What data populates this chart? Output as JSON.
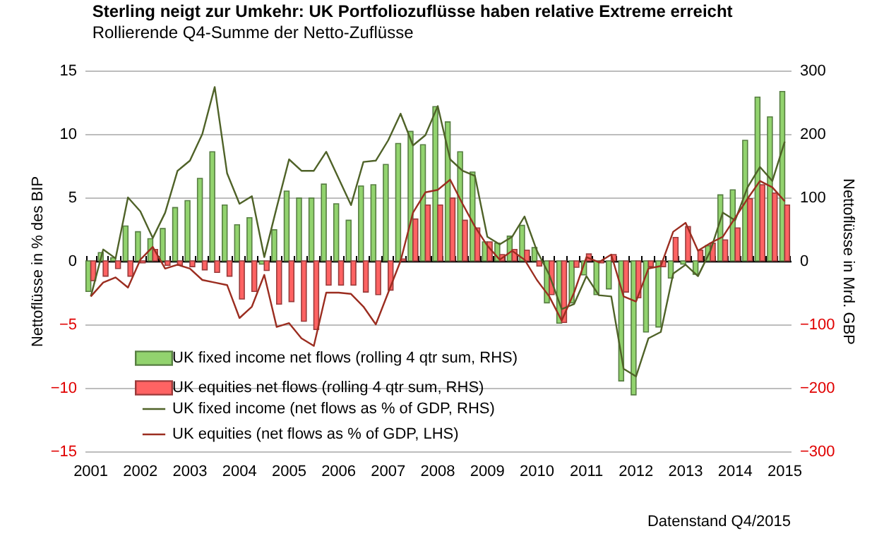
{
  "chart_data": {
    "type": "bar",
    "title": "Sterling neigt zur Umkehr: UK Portfoliozuflüsse haben relative Extreme erreicht",
    "subtitle": "Rollierende Q4-Summe der Netto-Zuflüsse",
    "ylabel": "Nettoflüsse in % des BIP",
    "y2label": "Nettoflüsse in Mrd. GBP",
    "annotations": [
      "Datenstand Q4/2015"
    ],
    "categories": [
      "2001",
      null,
      null,
      null,
      "2002",
      null,
      null,
      null,
      "2003",
      null,
      null,
      null,
      "2004",
      null,
      null,
      null,
      "2005",
      null,
      null,
      null,
      "2006",
      null,
      null,
      null,
      "2007",
      null,
      null,
      null,
      "2008",
      null,
      null,
      null,
      "2009",
      null,
      null,
      null,
      "2010",
      null,
      null,
      null,
      "2011",
      null,
      null,
      null,
      "2012",
      null,
      null,
      null,
      "2013",
      null,
      null,
      null,
      "2014",
      null,
      null,
      null,
      "2015"
    ],
    "series": [
      {
        "name": "UK fixed income net flows (rolling 4 qtr sum, RHS)",
        "axis": "y2",
        "color": "#92d36e",
        "values": [
          -48,
          13,
          5,
          55,
          46,
          35,
          51,
          84,
          95,
          130,
          172,
          88,
          57,
          68,
          -5,
          49,
          110,
          99,
          99,
          121,
          90,
          64,
          118,
          120,
          152,
          185,
          204,
          183,
          243,
          219,
          172,
          140,
          30,
          28,
          39,
          56,
          21,
          -66,
          -98,
          -66,
          -22,
          -53,
          -44,
          -189,
          -211,
          -112,
          -104,
          -27,
          -5,
          -21,
          24,
          104,
          112,
          190,
          258,
          227,
          267
        ]
      },
      {
        "name": "UK equities net flows (rolling 4 qtr sum, RHS)",
        "axis": "y2",
        "color": "#ff6363",
        "values": [
          -31,
          -24,
          -12,
          -24,
          -3,
          18,
          -7,
          -7,
          -9,
          -14,
          -18,
          -24,
          -60,
          -48,
          -15,
          -68,
          -64,
          -95,
          -108,
          -38,
          -38,
          -38,
          -49,
          -53,
          -46,
          3,
          66,
          88,
          88,
          99,
          64,
          52,
          30,
          10,
          18,
          17,
          -8,
          -53,
          -97,
          -10,
          11,
          -3,
          10,
          -49,
          -58,
          -9,
          -9,
          37,
          54,
          17,
          28,
          33,
          52,
          98,
          120,
          107,
          88
        ]
      },
      {
        "name": "UK fixed income (net flows as % of GDP, RHS)",
        "type": "line",
        "axis": "y",
        "color": "#4f6228",
        "values": [
          -2.8,
          0.9,
          0.2,
          5.0,
          3.9,
          1.8,
          3.8,
          7.1,
          7.9,
          10.0,
          13.7,
          6.9,
          4.5,
          5.1,
          0.3,
          4.2,
          8.0,
          7.1,
          7.1,
          8.6,
          6.5,
          4.4,
          7.8,
          7.9,
          9.5,
          11.6,
          9.1,
          9.9,
          12.2,
          8.0,
          7.1,
          6.7,
          1.9,
          1.3,
          1.9,
          3.5,
          0.8,
          -1.1,
          -3.8,
          -3.4,
          -1.2,
          -2.7,
          -2.8,
          -8.5,
          -9.1,
          -6.1,
          -5.6,
          -1.0,
          -0.3,
          -1.2,
          0.8,
          3.8,
          3.2,
          5.8,
          7.4,
          6.3,
          9.4
        ]
      },
      {
        "name": "UK equities (net flows as % of GDP, LHS)",
        "type": "line",
        "axis": "y",
        "color": "#9b2d20",
        "values": [
          -2.8,
          -1.7,
          -1.3,
          -2.1,
          0.1,
          1.1,
          -0.6,
          -0.3,
          -0.6,
          -1.5,
          -1.7,
          -1.9,
          -4.5,
          -3.6,
          -1.1,
          -5.2,
          -4.9,
          -6.1,
          -6.7,
          -2.5,
          -2.5,
          -2.6,
          -3.6,
          -5.0,
          -2.5,
          0.0,
          3.8,
          5.4,
          5.6,
          6.4,
          4.5,
          2.7,
          1.2,
          0.1,
          0.8,
          0.1,
          -1.5,
          -2.8,
          -4.7,
          -2.5,
          0.3,
          -0.1,
          0.5,
          -2.8,
          -3.2,
          -0.6,
          -0.4,
          2.3,
          3.0,
          0.8,
          1.4,
          1.9,
          3.4,
          4.9,
          6.3,
          5.8,
          4.7
        ]
      }
    ],
    "ylim": [
      -15,
      15
    ],
    "yticks": [
      -15,
      -10,
      -5,
      0,
      5,
      10,
      15
    ],
    "y2lim": [
      -300,
      300
    ],
    "y2ticks": [
      -300,
      -200,
      -100,
      0,
      100,
      200,
      300
    ],
    "grid": "y",
    "legend": "bottom left"
  }
}
